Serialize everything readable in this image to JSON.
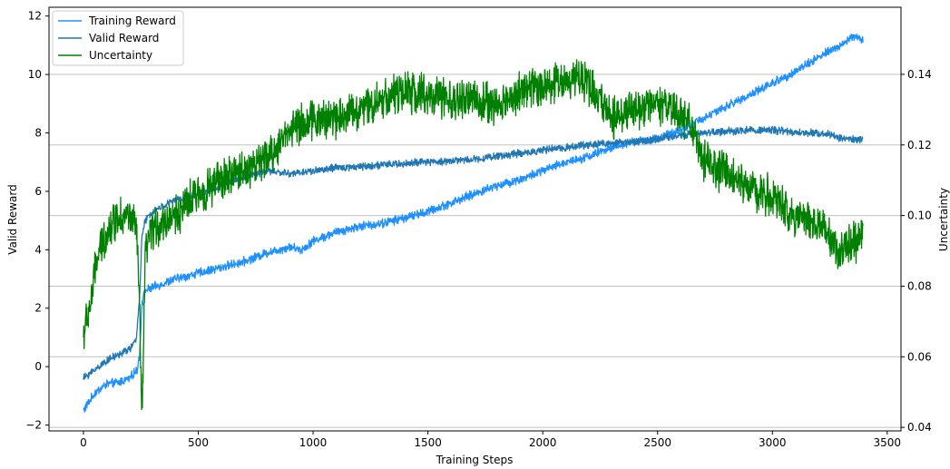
{
  "chart_data": {
    "type": "line",
    "title": "",
    "xlabel": "Training Steps",
    "ylabel": "Valid Reward",
    "y2label": "Uncertainty",
    "xlim": [
      -150,
      3560
    ],
    "ylim": [
      -2.2,
      12.3
    ],
    "y2lim": [
      0.039,
      0.159
    ],
    "x_ticks": [
      0,
      500,
      1000,
      1500,
      2000,
      2500,
      3000,
      3500
    ],
    "x_tick_labels": [
      "0",
      "500",
      "1000",
      "1500",
      "2000",
      "2500",
      "3000",
      "3500"
    ],
    "y_ticks": [
      -2,
      0,
      2,
      4,
      6,
      8,
      10,
      12
    ],
    "y_tick_labels": [
      "−2",
      "0",
      "2",
      "4",
      "6",
      "8",
      "10",
      "12"
    ],
    "y2_ticks": [
      0.04,
      0.06,
      0.08,
      0.1,
      0.12,
      0.14
    ],
    "y2_tick_labels": [
      "0.04",
      "0.06",
      "0.08",
      "0.10",
      "0.12",
      "0.14"
    ],
    "grid": "horizontal lines at right-axis ticks",
    "legend_position": "top-left",
    "series": [
      {
        "name": "Training Reward",
        "axis": "left",
        "color": "#1e90ff",
        "noise": 0.12,
        "points": [
          [
            0,
            -1.5
          ],
          [
            50,
            -0.9
          ],
          [
            100,
            -0.6
          ],
          [
            150,
            -0.55
          ],
          [
            200,
            -0.4
          ],
          [
            235,
            -0.1
          ],
          [
            245,
            0.5
          ],
          [
            255,
            2.2
          ],
          [
            270,
            2.6
          ],
          [
            300,
            2.7
          ],
          [
            400,
            3.0
          ],
          [
            500,
            3.2
          ],
          [
            600,
            3.4
          ],
          [
            700,
            3.6
          ],
          [
            800,
            3.9
          ],
          [
            900,
            4.1
          ],
          [
            950,
            4.0
          ],
          [
            1000,
            4.3
          ],
          [
            1100,
            4.6
          ],
          [
            1200,
            4.8
          ],
          [
            1300,
            4.9
          ],
          [
            1400,
            5.1
          ],
          [
            1500,
            5.3
          ],
          [
            1600,
            5.6
          ],
          [
            1700,
            5.9
          ],
          [
            1800,
            6.2
          ],
          [
            1900,
            6.4
          ],
          [
            2000,
            6.7
          ],
          [
            2100,
            7.0
          ],
          [
            2200,
            7.2
          ],
          [
            2300,
            7.5
          ],
          [
            2400,
            7.7
          ],
          [
            2500,
            7.8
          ],
          [
            2600,
            8.1
          ],
          [
            2700,
            8.5
          ],
          [
            2800,
            8.9
          ],
          [
            2900,
            9.3
          ],
          [
            3000,
            9.7
          ],
          [
            3100,
            10.1
          ],
          [
            3200,
            10.6
          ],
          [
            3300,
            11.0
          ],
          [
            3350,
            11.3
          ],
          [
            3395,
            11.2
          ]
        ]
      },
      {
        "name": "Valid Reward",
        "axis": "left",
        "color": "#1f77b4",
        "noise": 0.1,
        "points": [
          [
            0,
            -0.4
          ],
          [
            50,
            -0.1
          ],
          [
            100,
            0.2
          ],
          [
            150,
            0.4
          ],
          [
            200,
            0.6
          ],
          [
            230,
            0.9
          ],
          [
            245,
            2.5
          ],
          [
            255,
            4.5
          ],
          [
            270,
            5.0
          ],
          [
            300,
            5.3
          ],
          [
            350,
            5.5
          ],
          [
            400,
            5.7
          ],
          [
            500,
            5.9
          ],
          [
            600,
            6.2
          ],
          [
            700,
            6.5
          ],
          [
            800,
            6.7
          ],
          [
            900,
            6.6
          ],
          [
            1000,
            6.7
          ],
          [
            1100,
            6.8
          ],
          [
            1200,
            6.85
          ],
          [
            1300,
            6.9
          ],
          [
            1400,
            6.95
          ],
          [
            1500,
            7.0
          ],
          [
            1600,
            7.05
          ],
          [
            1700,
            7.1
          ],
          [
            1800,
            7.2
          ],
          [
            1900,
            7.3
          ],
          [
            2000,
            7.4
          ],
          [
            2100,
            7.5
          ],
          [
            2200,
            7.6
          ],
          [
            2300,
            7.65
          ],
          [
            2400,
            7.7
          ],
          [
            2500,
            7.8
          ],
          [
            2600,
            7.9
          ],
          [
            2700,
            8.0
          ],
          [
            2800,
            8.05
          ],
          [
            2900,
            8.1
          ],
          [
            3000,
            8.1
          ],
          [
            3100,
            8.0
          ],
          [
            3200,
            8.0
          ],
          [
            3250,
            7.95
          ],
          [
            3300,
            7.8
          ],
          [
            3395,
            7.75
          ]
        ]
      },
      {
        "name": "Uncertainty",
        "axis": "right",
        "color": "#008000",
        "noise": 0.0045,
        "points": [
          [
            0,
            0.066
          ],
          [
            30,
            0.075
          ],
          [
            60,
            0.088
          ],
          [
            100,
            0.095
          ],
          [
            150,
            0.1
          ],
          [
            200,
            0.1
          ],
          [
            230,
            0.096
          ],
          [
            245,
            0.075
          ],
          [
            252,
            0.045
          ],
          [
            260,
            0.055
          ],
          [
            270,
            0.09
          ],
          [
            300,
            0.096
          ],
          [
            400,
            0.1
          ],
          [
            500,
            0.106
          ],
          [
            600,
            0.11
          ],
          [
            700,
            0.113
          ],
          [
            800,
            0.116
          ],
          [
            850,
            0.12
          ],
          [
            900,
            0.125
          ],
          [
            1000,
            0.127
          ],
          [
            1100,
            0.128
          ],
          [
            1200,
            0.13
          ],
          [
            1300,
            0.133
          ],
          [
            1400,
            0.135
          ],
          [
            1500,
            0.134
          ],
          [
            1600,
            0.132
          ],
          [
            1700,
            0.133
          ],
          [
            1800,
            0.131
          ],
          [
            1900,
            0.135
          ],
          [
            2000,
            0.137
          ],
          [
            2100,
            0.138
          ],
          [
            2150,
            0.14
          ],
          [
            2200,
            0.137
          ],
          [
            2300,
            0.128
          ],
          [
            2400,
            0.13
          ],
          [
            2500,
            0.131
          ],
          [
            2600,
            0.129
          ],
          [
            2650,
            0.125
          ],
          [
            2700,
            0.115
          ],
          [
            2800,
            0.112
          ],
          [
            2900,
            0.108
          ],
          [
            3000,
            0.105
          ],
          [
            3100,
            0.1
          ],
          [
            3200,
            0.098
          ],
          [
            3250,
            0.093
          ],
          [
            3300,
            0.09
          ],
          [
            3350,
            0.092
          ],
          [
            3395,
            0.095
          ]
        ]
      }
    ]
  }
}
